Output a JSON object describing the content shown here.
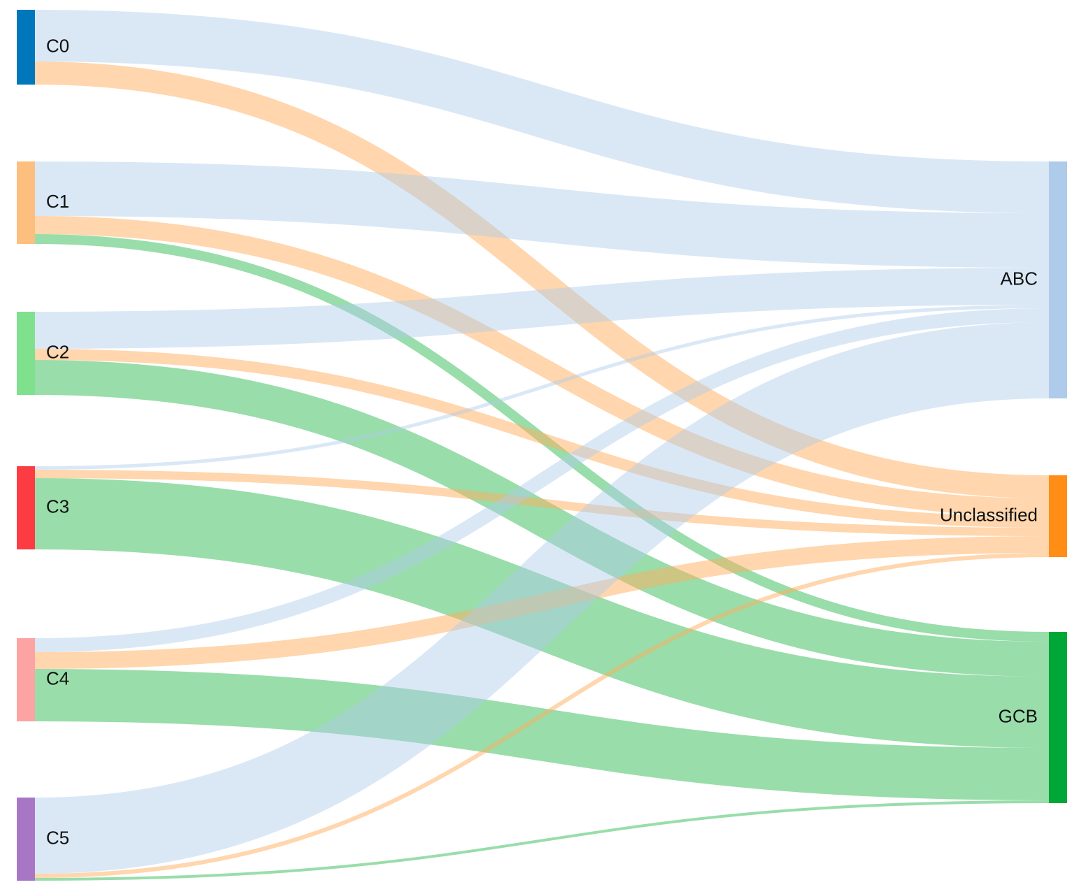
{
  "chart_data": {
    "type": "sankey",
    "nodes": [
      {
        "id": "C0",
        "label": "C0",
        "color": "#0077BB",
        "side": "left"
      },
      {
        "id": "C1",
        "label": "C1",
        "color": "#FDBF7E",
        "side": "left"
      },
      {
        "id": "C2",
        "label": "C2",
        "color": "#7FE08E",
        "side": "left"
      },
      {
        "id": "C3",
        "label": "C3",
        "color": "#FC3C42",
        "side": "left"
      },
      {
        "id": "C4",
        "label": "C4",
        "color": "#FCA3A3",
        "side": "left"
      },
      {
        "id": "C5",
        "label": "C5",
        "color": "#A777C5",
        "side": "left"
      },
      {
        "id": "ABC",
        "label": "ABC",
        "color": "#AECBEA",
        "side": "right"
      },
      {
        "id": "Unclassified",
        "label": "Unclassified",
        "color": "#FF8D16",
        "side": "right"
      },
      {
        "id": "GCB",
        "label": "GCB",
        "color": "#00A637",
        "side": "right"
      }
    ],
    "links": [
      {
        "source": "C0",
        "target": "ABC",
        "value": 7.4
      },
      {
        "source": "C0",
        "target": "Unclassified",
        "value": 3.3
      },
      {
        "source": "C1",
        "target": "ABC",
        "value": 7.8
      },
      {
        "source": "C1",
        "target": "Unclassified",
        "value": 2.6
      },
      {
        "source": "C1",
        "target": "GCB",
        "value": 1.4
      },
      {
        "source": "C2",
        "target": "ABC",
        "value": 5.3
      },
      {
        "source": "C2",
        "target": "Unclassified",
        "value": 1.6
      },
      {
        "source": "C2",
        "target": "GCB",
        "value": 5.0
      },
      {
        "source": "C3",
        "target": "ABC",
        "value": 0.5
      },
      {
        "source": "C3",
        "target": "Unclassified",
        "value": 1.2
      },
      {
        "source": "C3",
        "target": "GCB",
        "value": 10.2
      },
      {
        "source": "C4",
        "target": "ABC",
        "value": 2.0
      },
      {
        "source": "C4",
        "target": "Unclassified",
        "value": 2.4
      },
      {
        "source": "C4",
        "target": "GCB",
        "value": 7.5
      },
      {
        "source": "C5",
        "target": "ABC",
        "value": 10.9
      },
      {
        "source": "C5",
        "target": "Unclassified",
        "value": 0.6
      },
      {
        "source": "C5",
        "target": "GCB",
        "value": 0.4
      }
    ],
    "link_colors": {
      "ABC": "#AECBEA",
      "Unclassified": "#FFAD5C",
      "GCB": "#33BB55"
    }
  }
}
